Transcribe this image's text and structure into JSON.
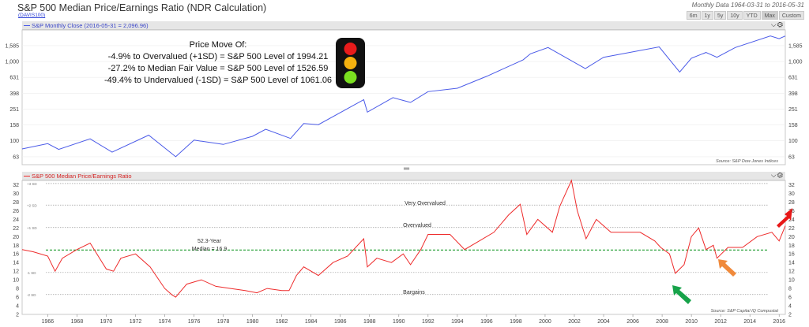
{
  "header": {
    "title": "S&P 500 Median Price/Earnings Ratio (NDR Calculation)",
    "ticker": "(DAVIS100)",
    "data_range": "Monthly Data 1964-03-31 to 2016-05-31",
    "range_buttons": [
      "6m",
      "1y",
      "5y",
      "10y",
      "YTD",
      "Max",
      "Custom"
    ]
  },
  "top_panel": {
    "legend": "S&P Monthly Close (2016-05-31 = 2,096.96)",
    "source": "Source:   S&P Dow Jones Indices",
    "annotation": {
      "heading": "Price Move Of:",
      "lines": [
        "-4.9% to Overvalued (+1SD) = S&P 500 Level of 1994.21",
        "-27.2% to Median Fair Value = S&P 500 Level of 1526.59",
        "-49.4% to Undervalued (-1SD) = S&P 500 Level of 1061.06"
      ]
    },
    "ticks": [
      "1,585",
      "1,000",
      "631",
      "398",
      "251",
      "158",
      "100",
      "63"
    ]
  },
  "bottom_panel": {
    "legend": "S&P 500 Median Price/Earnings Ratio",
    "source": "Source:   S&P Capital IQ Compustat",
    "labels": {
      "very_overvalued": "Very Overvalued",
      "overvalued": "Overvalued",
      "median_line1": "52.3-Year",
      "median_line2": "Median = 16.9",
      "bargains": "Bargains"
    },
    "sd_labels": [
      "+3 SD",
      "+2 SD",
      "+1 SD",
      "-1 SD",
      "-2 SD"
    ]
  },
  "x_axis": {
    "ticks": [
      "1966",
      "1968",
      "1970",
      "1972",
      "1974",
      "1976",
      "1978",
      "1980",
      "1982",
      "1984",
      "1986",
      "1988",
      "1990",
      "1992",
      "1994",
      "1996",
      "1998",
      "2000",
      "2002",
      "2004",
      "2006",
      "2008",
      "2010",
      "2012",
      "2014",
      "2016"
    ]
  },
  "colors": {
    "price_line": "#4a5ae8",
    "pe_line": "#ee2b2b",
    "median_line": "#1a9a2a",
    "arrow_red": "#e81818",
    "arrow_orange": "#f08a3c",
    "arrow_green": "#17a34a",
    "light_red": "#e81b1b",
    "light_yellow": "#f5b10f",
    "light_green": "#7be020"
  },
  "chart_data": [
    {
      "type": "line",
      "title": "S&P Monthly Close (2016-05-31 = 2,096.96)",
      "y_scale": "log",
      "ylim": [
        50,
        2500
      ],
      "xlim": [
        1964.25,
        2016.42
      ],
      "series": [
        {
          "name": "S&P Monthly Close",
          "x": [
            1964.25,
            1966.0,
            1966.75,
            1968.9,
            1970.4,
            1972.9,
            1974.75,
            1976.0,
            1978.0,
            1980.0,
            1980.9,
            1982.6,
            1983.5,
            1984.5,
            1987.6,
            1987.85,
            1989.6,
            1990.8,
            1992.0,
            1994.0,
            1996.0,
            1998.5,
            1999.0,
            2000.2,
            2002.75,
            2004.0,
            2007.8,
            2009.2,
            2010.0,
            2011.0,
            2011.75,
            2013.0,
            2015.4,
            2016.0,
            2016.42
          ],
          "y": [
            79,
            92,
            78,
            106,
            72,
            118,
            63,
            102,
            90,
            114,
            140,
            107,
            165,
            160,
            330,
            230,
            350,
            305,
            417,
            460,
            650,
            1050,
            1250,
            1500,
            815,
            1130,
            1530,
            735,
            1100,
            1300,
            1130,
            1500,
            2100,
            1940,
            2097
          ]
        }
      ]
    },
    {
      "type": "line",
      "title": "S&P 500 Median Price/Earnings Ratio",
      "ylim": [
        2,
        33
      ],
      "xlim": [
        1964.25,
        2016.42
      ],
      "y_ticks": [
        2,
        4,
        6,
        8,
        10,
        12,
        14,
        16,
        18,
        20,
        22,
        24,
        26,
        28,
        30,
        32
      ],
      "reference_lines": [
        {
          "label": "+3 SD",
          "value": 32.3
        },
        {
          "label": "+2 SD",
          "value": 27.3
        },
        {
          "label": "+1 SD",
          "value": 22.1
        },
        {
          "label": "52.3-Year Median = 16.9",
          "value": 16.9
        },
        {
          "label": "-1 SD",
          "value": 11.7
        },
        {
          "label": "-2 SD",
          "value": 6.6
        }
      ],
      "series": [
        {
          "name": "S&P 500 Median Price/Earnings Ratio",
          "x": [
            1964.25,
            1965.0,
            1966.0,
            1966.5,
            1967.0,
            1968.0,
            1968.9,
            1970.0,
            1970.5,
            1971.0,
            1972.0,
            1973.0,
            1974.0,
            1974.5,
            1974.75,
            1975.5,
            1976.5,
            1977.5,
            1978.5,
            1979.5,
            1980.3,
            1981.0,
            1982.0,
            1982.5,
            1983.0,
            1983.5,
            1984.5,
            1985.5,
            1986.5,
            1987.6,
            1987.85,
            1988.5,
            1989.5,
            1990.3,
            1990.8,
            1991.5,
            1992.0,
            1993.5,
            1994.5,
            1995.5,
            1996.5,
            1997.5,
            1998.3,
            1998.75,
            1999.5,
            2000.5,
            2001.0,
            2001.8,
            2002.2,
            2002.8,
            2003.5,
            2004.5,
            2005.5,
            2006.5,
            2007.5,
            2007.9,
            2008.5,
            2008.9,
            2009.5,
            2010.0,
            2010.5,
            2011.0,
            2011.5,
            2011.75,
            2012.5,
            2013.5,
            2014.5,
            2015.5,
            2016.0,
            2016.42
          ],
          "y": [
            17.0,
            16.5,
            15.5,
            12.0,
            15.0,
            17.0,
            18.5,
            12.5,
            12.0,
            15.0,
            16.0,
            13.0,
            8.0,
            6.5,
            6.0,
            9.0,
            10.0,
            8.5,
            8.0,
            7.5,
            7.0,
            8.0,
            7.5,
            7.5,
            11.0,
            13.0,
            11.0,
            14.0,
            15.5,
            19.5,
            13.0,
            15.0,
            14.0,
            16.0,
            13.5,
            17.0,
            20.5,
            20.5,
            17.0,
            19.0,
            21.0,
            25.0,
            27.5,
            20.5,
            24.0,
            21.0,
            27.0,
            33.0,
            26.0,
            19.5,
            24.0,
            21.0,
            21.0,
            21.0,
            19.0,
            17.5,
            16.0,
            11.5,
            13.5,
            20.0,
            22.0,
            17.0,
            18.0,
            15.0,
            17.5,
            17.5,
            20.0,
            21.0,
            19.0,
            22.5
          ]
        }
      ]
    }
  ]
}
